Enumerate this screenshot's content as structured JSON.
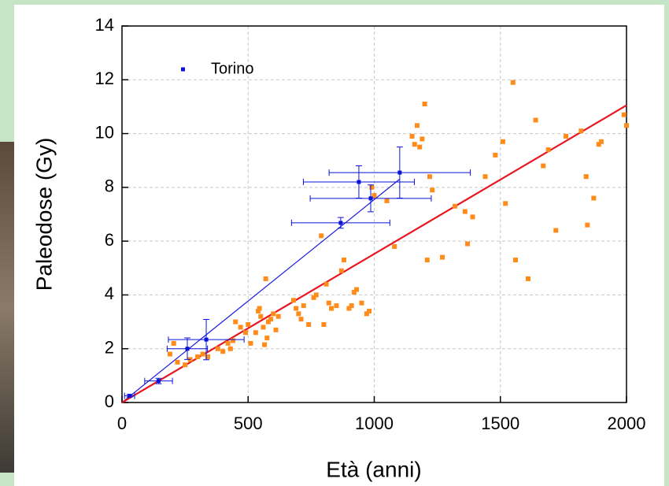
{
  "chart_data": {
    "type": "scatter",
    "x_label": "Età (anni)",
    "y_label": "Paleodose (Gy)",
    "xlim": [
      0,
      2000
    ],
    "ylim": [
      0,
      14
    ],
    "xticks": [
      0,
      500,
      1000,
      1500,
      2000
    ],
    "yticks": [
      0,
      2,
      4,
      6,
      8,
      10,
      12,
      14
    ],
    "grid": true,
    "legend": "upper left",
    "series": [
      {
        "name": "Torino",
        "color": "#0a14d8",
        "x": [
          30,
          145,
          259,
          334,
          867,
          939,
          986,
          1101
        ],
        "values": [
          0.25,
          0.8,
          2.0,
          2.34,
          6.68,
          8.2,
          7.59,
          8.55
        ],
        "xerr": [
          20,
          55,
          80,
          150,
          195,
          220,
          240,
          280
        ],
        "yerr": [
          0.05,
          0.1,
          0.4,
          0.75,
          0.2,
          0.6,
          0.5,
          0.95
        ]
      },
      {
        "color": "#ff8c1a",
        "x": [
          190,
          205,
          220,
          250,
          270,
          300,
          320,
          340,
          380,
          400,
          420,
          430,
          440,
          450,
          470,
          490,
          500,
          510,
          530,
          540,
          545,
          550,
          560,
          565,
          570,
          575,
          580,
          590,
          600,
          610,
          620,
          680,
          690,
          700,
          710,
          720,
          740,
          760,
          770,
          790,
          800,
          810,
          820,
          830,
          850,
          870,
          880,
          900,
          910,
          920,
          930,
          950,
          970,
          980,
          990,
          1000,
          1050,
          1080,
          1150,
          1160,
          1170,
          1180,
          1190,
          1200,
          1210,
          1220,
          1230,
          1270,
          1320,
          1360,
          1370,
          1390,
          1440,
          1480,
          1510,
          1520,
          1550,
          1560,
          1610,
          1640,
          1670,
          1690,
          1720,
          1760,
          1820,
          1840,
          1845,
          1870,
          1890,
          1900,
          1990,
          2000
        ],
        "values": [
          1.8,
          2.2,
          1.5,
          1.4,
          1.6,
          1.7,
          1.8,
          1.7,
          2.0,
          1.9,
          2.2,
          2.0,
          2.3,
          3.0,
          2.8,
          2.6,
          2.9,
          2.2,
          2.6,
          3.4,
          3.5,
          3.2,
          2.8,
          2.15,
          4.6,
          2.4,
          3.0,
          3.1,
          3.3,
          2.7,
          3.2,
          3.8,
          3.5,
          3.3,
          3.1,
          3.6,
          2.9,
          3.9,
          4.0,
          6.2,
          2.9,
          4.4,
          3.7,
          3.5,
          3.6,
          4.9,
          5.3,
          3.5,
          3.6,
          4.1,
          4.2,
          3.7,
          3.3,
          3.4,
          8.0,
          7.7,
          7.5,
          5.8,
          9.9,
          9.6,
          10.3,
          9.5,
          9.8,
          11.1,
          5.3,
          8.4,
          7.9,
          5.4,
          7.3,
          7.1,
          5.9,
          6.9,
          8.4,
          9.2,
          9.7,
          7.4,
          11.9,
          5.3,
          4.6,
          10.5,
          8.8,
          9.4,
          6.4,
          9.9,
          10.1,
          8.4,
          6.6,
          7.6,
          9.6,
          9.7,
          10.7,
          10.3
        ]
      }
    ],
    "lines": [
      {
        "color": "#1a1adf",
        "x": [
          0,
          1100
        ],
        "values": [
          0,
          8.3
        ]
      },
      {
        "color": "#e8141e",
        "x": [
          0,
          2000
        ],
        "values": [
          0,
          11.05
        ]
      }
    ]
  }
}
